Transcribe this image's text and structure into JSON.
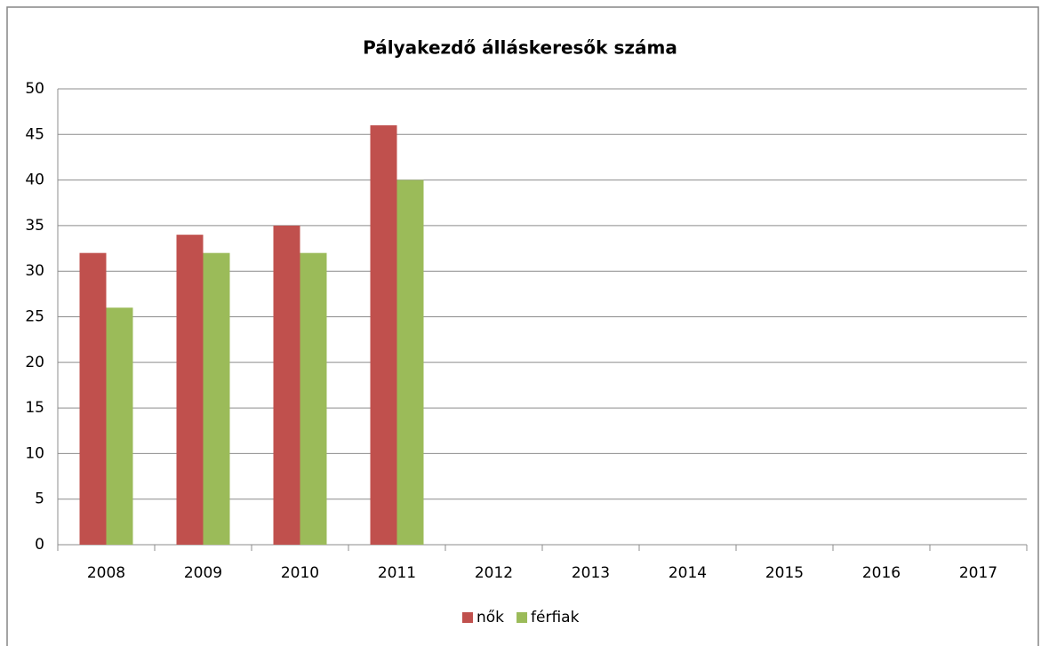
{
  "chart_data": {
    "type": "bar",
    "title": "Pályakezdő álláskeresők száma",
    "categories": [
      "2008",
      "2009",
      "2010",
      "2011",
      "2012",
      "2013",
      "2014",
      "2015",
      "2016",
      "2017"
    ],
    "series": [
      {
        "name": "nők",
        "color": "#c0504d",
        "values": [
          32,
          34,
          35,
          46,
          null,
          null,
          null,
          null,
          null,
          null
        ]
      },
      {
        "name": "férfiak",
        "color": "#9bbb59",
        "values": [
          26,
          32,
          32,
          40,
          null,
          null,
          null,
          null,
          null,
          null
        ]
      }
    ],
    "ylim": [
      0,
      50
    ],
    "yticks": [
      0,
      5,
      10,
      15,
      20,
      25,
      30,
      35,
      40,
      45,
      50
    ],
    "grid": true,
    "legend": "bottom"
  }
}
